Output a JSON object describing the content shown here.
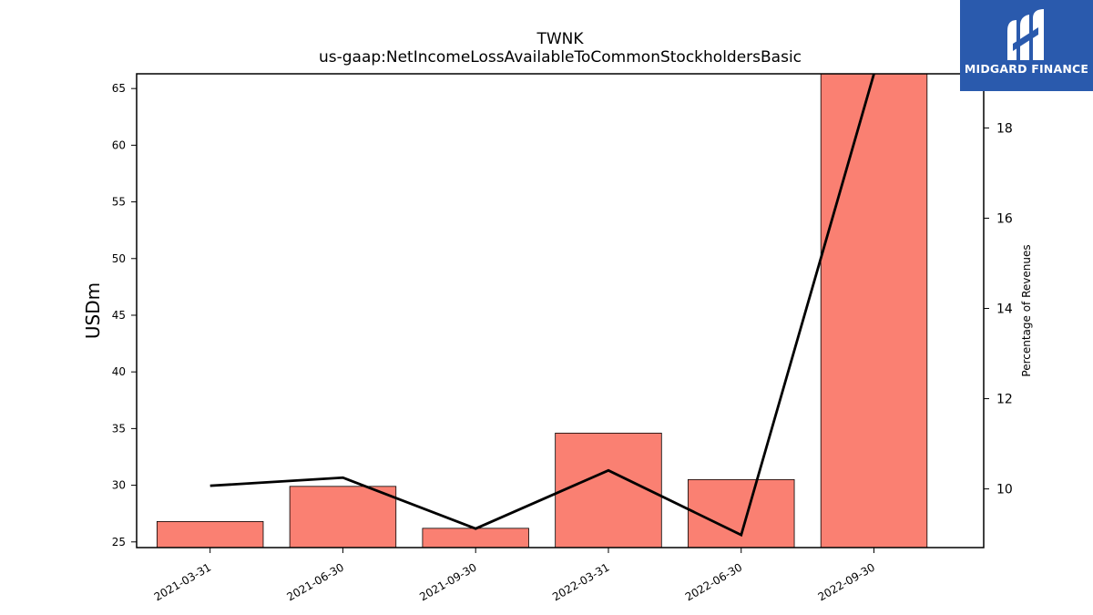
{
  "chart_data": {
    "type": "bar",
    "title": "TWNK",
    "subtitle": "us-gaap:NetIncomeLossAvailableToCommonStockholdersBasic",
    "ylabel": "USDm",
    "y2label": "Percentage of Revenues",
    "categories": [
      "2021-03-31",
      "2021-06-30",
      "2021-09-30",
      "2022-03-31",
      "2022-06-30",
      "2022-09-30"
    ],
    "series": [
      {
        "type": "bar",
        "axis": "left",
        "color": "#fa8072",
        "values": [
          26.8,
          29.9,
          26.2,
          34.6,
          30.5,
          67.5
        ]
      },
      {
        "type": "line",
        "axis": "right",
        "color": "#000000",
        "values": [
          10.07,
          10.25,
          9.12,
          10.41,
          8.98,
          19.2
        ]
      }
    ],
    "ylim": [
      24.5,
      66.3
    ],
    "y2lim": [
      8.7,
      19.2
    ],
    "yticks": [
      25,
      30,
      35,
      40,
      45,
      50,
      55,
      60,
      65
    ],
    "y2ticks": [
      10,
      12,
      14,
      16,
      18
    ],
    "grid": false
  },
  "logo": {
    "text": "MIDGARD FINANCE",
    "icon": "midgard-logo-icon",
    "color": "#2a5aad"
  }
}
